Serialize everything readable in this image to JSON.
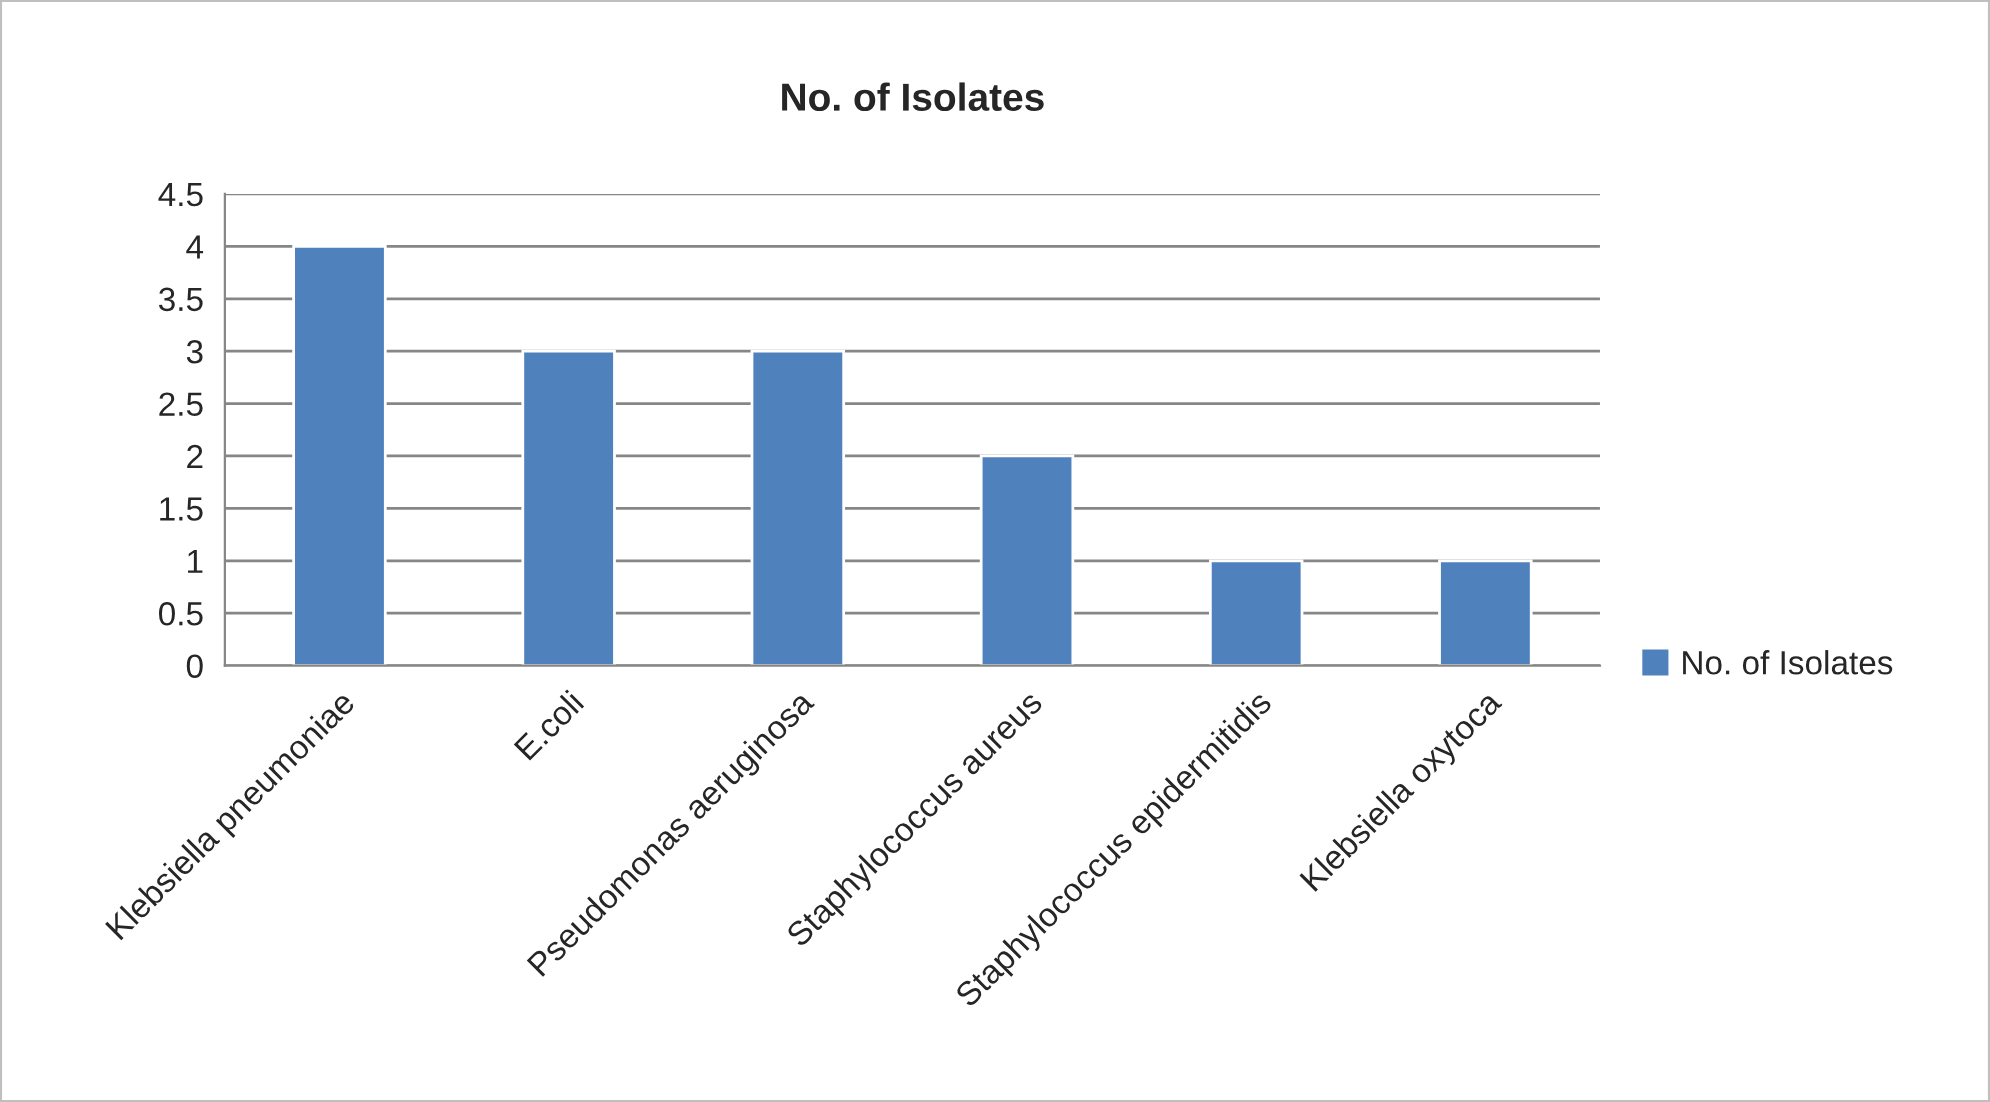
{
  "chart_data": {
    "type": "bar",
    "title": "No. of Isolates",
    "categories": [
      "Klebsiella pneumoniae",
      "E.coli",
      "Pseudomonas aeruginosa",
      "Staphylococcus aureus",
      "Staphylococcus epidermitidis",
      "Klebsiella oxytoca"
    ],
    "series": [
      {
        "name": "No. of Isolates",
        "color": "#4f81bd",
        "values": [
          4,
          3,
          3,
          2,
          1,
          1
        ]
      }
    ],
    "ylim": [
      0,
      4.5
    ],
    "yticks": [
      0,
      0.5,
      1,
      1.5,
      2,
      2.5,
      3,
      3.5,
      4,
      4.5
    ],
    "grid": "y",
    "legend": "right"
  }
}
